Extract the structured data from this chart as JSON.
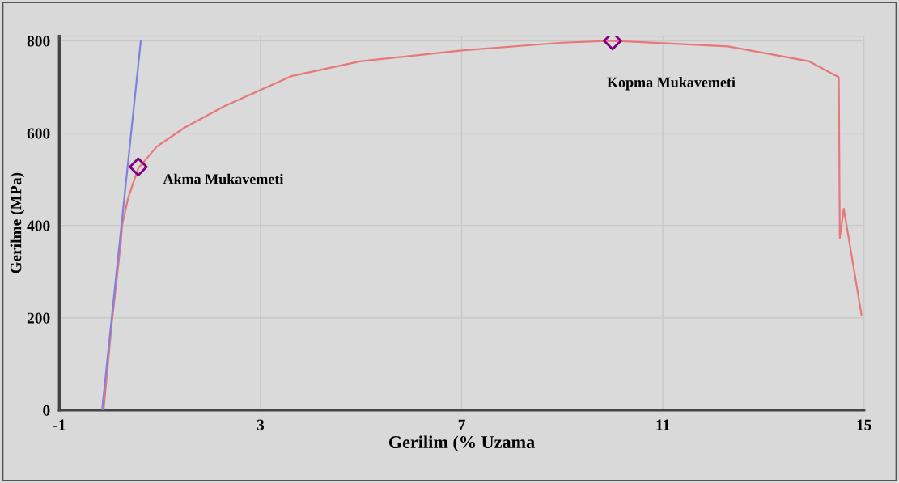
{
  "chart_data": {
    "type": "line",
    "xlabel": "Gerilim (% Uzama",
    "ylabel": "Gerilme (MPa)",
    "xlim": [
      -1,
      15
    ],
    "ylim": [
      0,
      810
    ],
    "xticks": [
      -1,
      3,
      7,
      11,
      15
    ],
    "yticks": [
      0,
      200,
      400,
      600,
      800
    ],
    "grid": true,
    "marker": "none",
    "line_style": "solid",
    "series": [
      {
        "color": "#e87878",
        "x": [
          -0.12,
          0.04,
          0.22,
          0.25,
          0.37,
          0.57,
          0.94,
          1.49,
          2.29,
          3.63,
          5,
          7,
          9,
          10,
          11,
          12.3,
          13.9,
          14.5,
          14.52,
          14.6,
          14.95
        ],
        "values": [
          0,
          185,
          360,
          401,
          460,
          524,
          571,
          612,
          659,
          724,
          756,
          779,
          796,
          800,
          795,
          788,
          756,
          721,
          373,
          436,
          207
        ]
      },
      {
        "color": "#8080e0",
        "x": [
          -0.15,
          0.62
        ],
        "values": [
          0,
          800
        ]
      },
      {
        "type": "scatter",
        "marker": "diamond",
        "color": "#800080",
        "x": [
          0.57,
          10.0
        ],
        "values": [
          527,
          800
        ]
      }
    ],
    "annotations": [
      {
        "text": "Akma Mukavemeti",
        "x": 0.57,
        "y": 527
      },
      {
        "text": "Kopma Mukavemeti",
        "x": 10.0,
        "y": 800
      }
    ]
  }
}
